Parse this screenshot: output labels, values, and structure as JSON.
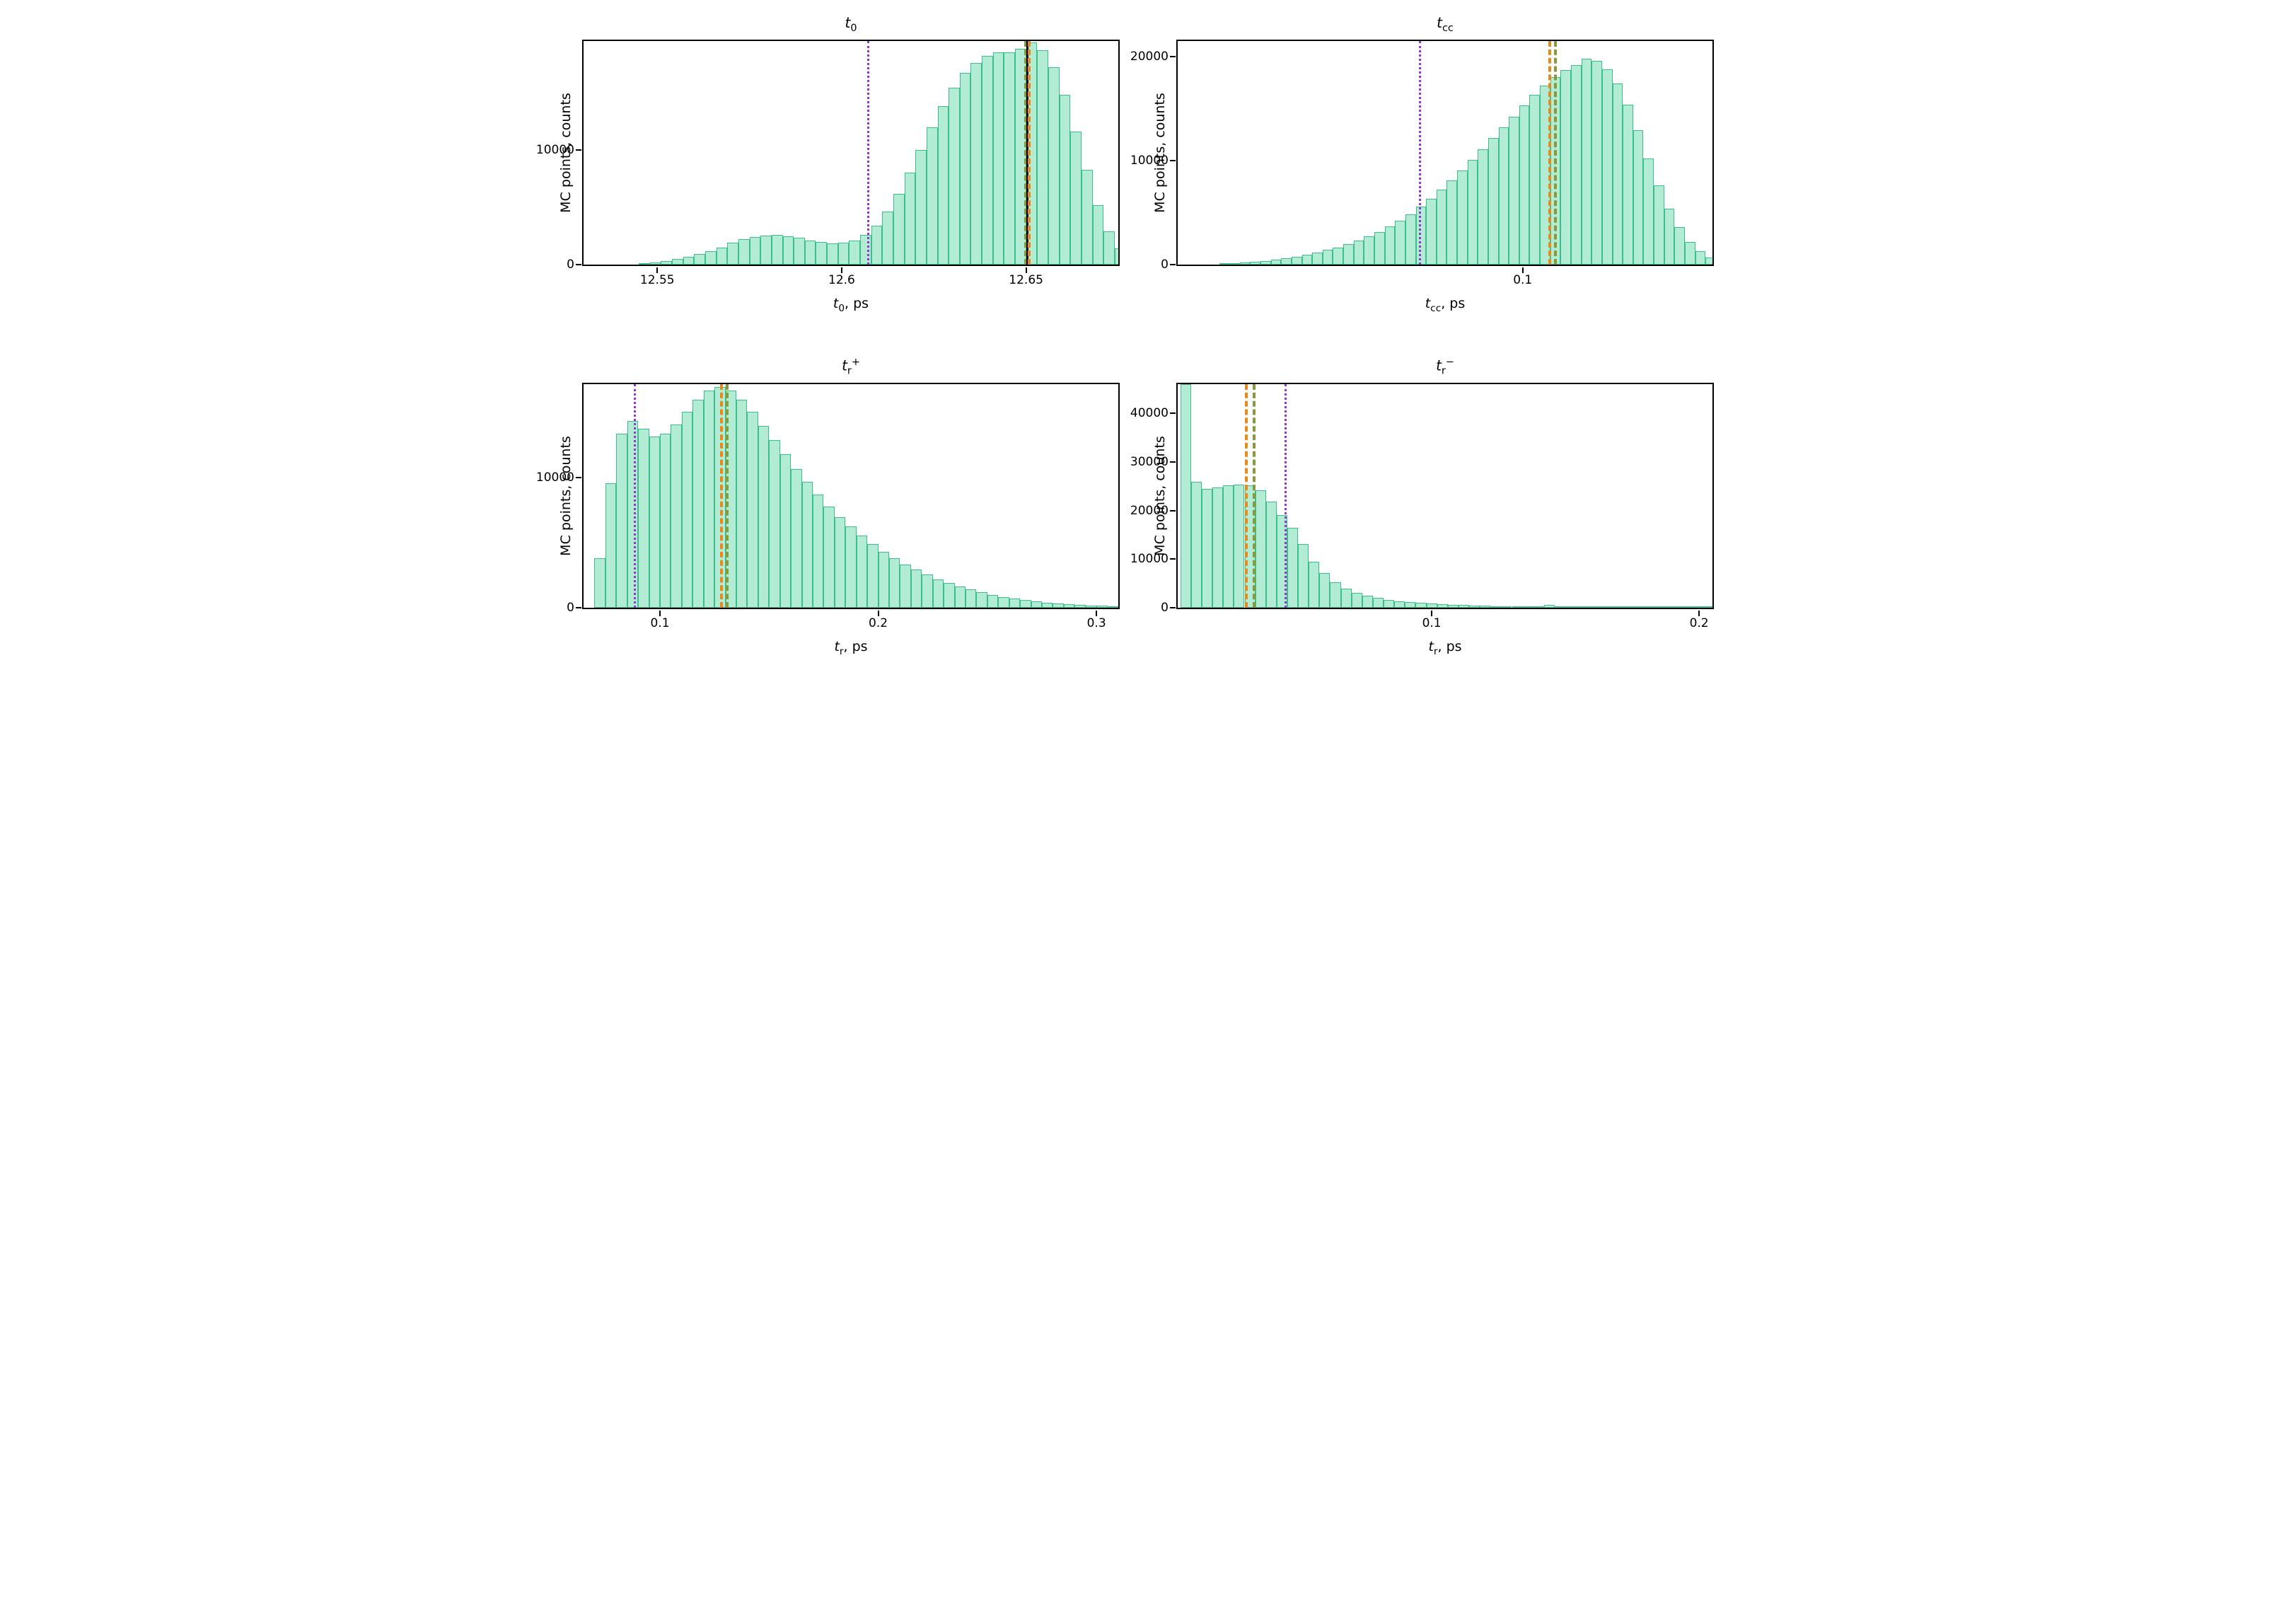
{
  "layout": {
    "rows": 2,
    "cols": 2,
    "background_color": "#ffffff",
    "font_family": "DejaVu Sans",
    "title_fontsize": 20,
    "axis_label_fontsize": 19,
    "tick_fontsize": 17
  },
  "colors": {
    "bar_fill": "#b3ecd4",
    "bar_edge": "#3bbf8a",
    "purple_dotted": "#9336d1",
    "orange_dashdot": "#e78a1e",
    "olive_dashdot": "#8a9a3a",
    "black_solid": "#000000",
    "axis": "#000000"
  },
  "panels": [
    {
      "id": "t0",
      "title_html": "<i>t</i><span class='sub'>0</span>",
      "type": "histogram",
      "ylabel": "MC points, counts",
      "xlabel_html": "<i>t</i><span class='sub'>0</span>, ps",
      "xlim": [
        12.53,
        12.675
      ],
      "ylim": [
        0,
        19500
      ],
      "xticks": [
        12.55,
        12.6,
        12.65
      ],
      "yticks": [
        0,
        10000
      ],
      "bin_width": 0.003,
      "bins": [
        {
          "x": 12.545,
          "c": 80
        },
        {
          "x": 12.548,
          "c": 180
        },
        {
          "x": 12.551,
          "c": 320
        },
        {
          "x": 12.554,
          "c": 480
        },
        {
          "x": 12.557,
          "c": 680
        },
        {
          "x": 12.56,
          "c": 900
        },
        {
          "x": 12.563,
          "c": 1150
        },
        {
          "x": 12.566,
          "c": 1500
        },
        {
          "x": 12.569,
          "c": 1900
        },
        {
          "x": 12.572,
          "c": 2200
        },
        {
          "x": 12.575,
          "c": 2400
        },
        {
          "x": 12.578,
          "c": 2550
        },
        {
          "x": 12.581,
          "c": 2580
        },
        {
          "x": 12.584,
          "c": 2500
        },
        {
          "x": 12.587,
          "c": 2350
        },
        {
          "x": 12.59,
          "c": 2100
        },
        {
          "x": 12.593,
          "c": 1950
        },
        {
          "x": 12.596,
          "c": 1850
        },
        {
          "x": 12.599,
          "c": 1900
        },
        {
          "x": 12.602,
          "c": 2100
        },
        {
          "x": 12.605,
          "c": 2600
        },
        {
          "x": 12.608,
          "c": 3400
        },
        {
          "x": 12.611,
          "c": 4600
        },
        {
          "x": 12.614,
          "c": 6200
        },
        {
          "x": 12.617,
          "c": 8000
        },
        {
          "x": 12.62,
          "c": 10000
        },
        {
          "x": 12.623,
          "c": 12000
        },
        {
          "x": 12.626,
          "c": 13800
        },
        {
          "x": 12.629,
          "c": 15400
        },
        {
          "x": 12.632,
          "c": 16700
        },
        {
          "x": 12.635,
          "c": 17600
        },
        {
          "x": 12.638,
          "c": 18200
        },
        {
          "x": 12.641,
          "c": 18500
        },
        {
          "x": 12.644,
          "c": 18500
        },
        {
          "x": 12.647,
          "c": 18800
        },
        {
          "x": 12.65,
          "c": 19400
        },
        {
          "x": 12.653,
          "c": 18700
        },
        {
          "x": 12.656,
          "c": 17200
        },
        {
          "x": 12.659,
          "c": 14800
        },
        {
          "x": 12.662,
          "c": 11600
        },
        {
          "x": 12.665,
          "c": 8300
        },
        {
          "x": 12.668,
          "c": 5200
        },
        {
          "x": 12.671,
          "c": 2900
        },
        {
          "x": 12.674,
          "c": 1400
        }
      ],
      "vlines": [
        {
          "x": 12.607,
          "style": "dotted",
          "color": "purple_dotted"
        },
        {
          "x": 12.6495,
          "style": "dashdot",
          "color": "olive_dashdot"
        },
        {
          "x": 12.65,
          "style": "solid",
          "color": "black_solid"
        },
        {
          "x": 12.6505,
          "style": "dashdot",
          "color": "orange_dashdot"
        }
      ]
    },
    {
      "id": "tcc",
      "title_html": "<i>t</i><span class='sub'>cc</span>",
      "type": "histogram",
      "ylabel": "MC points, counts",
      "xlabel_html": "<i>t</i><span class='sub'>cc</span>, ps",
      "xlim": [
        0.0,
        0.155
      ],
      "ylim": [
        0,
        21500
      ],
      "xticks": [
        0.1
      ],
      "yticks": [
        0,
        10000,
        20000
      ],
      "bin_width": 0.003,
      "bins": [
        {
          "x": 0.012,
          "c": 50
        },
        {
          "x": 0.015,
          "c": 110
        },
        {
          "x": 0.018,
          "c": 180
        },
        {
          "x": 0.021,
          "c": 260
        },
        {
          "x": 0.024,
          "c": 360
        },
        {
          "x": 0.027,
          "c": 480
        },
        {
          "x": 0.03,
          "c": 620
        },
        {
          "x": 0.033,
          "c": 780
        },
        {
          "x": 0.036,
          "c": 960
        },
        {
          "x": 0.039,
          "c": 1160
        },
        {
          "x": 0.042,
          "c": 1400
        },
        {
          "x": 0.045,
          "c": 1650
        },
        {
          "x": 0.048,
          "c": 1950
        },
        {
          "x": 0.051,
          "c": 2300
        },
        {
          "x": 0.054,
          "c": 2700
        },
        {
          "x": 0.057,
          "c": 3150
        },
        {
          "x": 0.06,
          "c": 3650
        },
        {
          "x": 0.063,
          "c": 4200
        },
        {
          "x": 0.066,
          "c": 4850
        },
        {
          "x": 0.069,
          "c": 5550
        },
        {
          "x": 0.072,
          "c": 6350
        },
        {
          "x": 0.075,
          "c": 7200
        },
        {
          "x": 0.078,
          "c": 8100
        },
        {
          "x": 0.081,
          "c": 9050
        },
        {
          "x": 0.084,
          "c": 10050
        },
        {
          "x": 0.087,
          "c": 11100
        },
        {
          "x": 0.09,
          "c": 12150
        },
        {
          "x": 0.093,
          "c": 13200
        },
        {
          "x": 0.096,
          "c": 14250
        },
        {
          "x": 0.099,
          "c": 15300
        },
        {
          "x": 0.102,
          "c": 16300
        },
        {
          "x": 0.105,
          "c": 17200
        },
        {
          "x": 0.108,
          "c": 18000
        },
        {
          "x": 0.111,
          "c": 18700
        },
        {
          "x": 0.114,
          "c": 19200
        },
        {
          "x": 0.117,
          "c": 19800
        },
        {
          "x": 0.12,
          "c": 19600
        },
        {
          "x": 0.123,
          "c": 18800
        },
        {
          "x": 0.126,
          "c": 17400
        },
        {
          "x": 0.129,
          "c": 15400
        },
        {
          "x": 0.132,
          "c": 12900
        },
        {
          "x": 0.135,
          "c": 10200
        },
        {
          "x": 0.138,
          "c": 7600
        },
        {
          "x": 0.141,
          "c": 5400
        },
        {
          "x": 0.144,
          "c": 3600
        },
        {
          "x": 0.147,
          "c": 2200
        },
        {
          "x": 0.15,
          "c": 1300
        },
        {
          "x": 0.153,
          "c": 700
        }
      ],
      "vlines": [
        {
          "x": 0.07,
          "style": "dotted",
          "color": "purple_dotted"
        },
        {
          "x": 0.1075,
          "style": "dashdot",
          "color": "orange_dashdot"
        },
        {
          "x": 0.109,
          "style": "dashdot",
          "color": "olive_dashdot"
        }
      ]
    },
    {
      "id": "tr_plus",
      "title_html": "<i>t</i><span class='sub'>r</span><span class='sup'>+</span>",
      "type": "histogram",
      "ylabel": "MC points, counts",
      "xlabel_html": "<i>t</i><span class='sub'>r</span>, ps",
      "xlim": [
        0.065,
        0.31
      ],
      "ylim": [
        0,
        17200
      ],
      "xticks": [
        0.1,
        0.2,
        0.3
      ],
      "yticks": [
        0,
        10000
      ],
      "bin_width": 0.005,
      "bins": [
        {
          "x": 0.07,
          "c": 3800
        },
        {
          "x": 0.075,
          "c": 9600
        },
        {
          "x": 0.08,
          "c": 13400
        },
        {
          "x": 0.085,
          "c": 14400
        },
        {
          "x": 0.09,
          "c": 13800
        },
        {
          "x": 0.095,
          "c": 13200
        },
        {
          "x": 0.1,
          "c": 13400
        },
        {
          "x": 0.105,
          "c": 14100
        },
        {
          "x": 0.11,
          "c": 15100
        },
        {
          "x": 0.115,
          "c": 16000
        },
        {
          "x": 0.12,
          "c": 16700
        },
        {
          "x": 0.125,
          "c": 17000
        },
        {
          "x": 0.13,
          "c": 16700
        },
        {
          "x": 0.135,
          "c": 16000
        },
        {
          "x": 0.14,
          "c": 15100
        },
        {
          "x": 0.145,
          "c": 14000
        },
        {
          "x": 0.15,
          "c": 12900
        },
        {
          "x": 0.155,
          "c": 11800
        },
        {
          "x": 0.16,
          "c": 10700
        },
        {
          "x": 0.165,
          "c": 9700
        },
        {
          "x": 0.17,
          "c": 8700
        },
        {
          "x": 0.175,
          "c": 7800
        },
        {
          "x": 0.18,
          "c": 7000
        },
        {
          "x": 0.185,
          "c": 6250
        },
        {
          "x": 0.19,
          "c": 5550
        },
        {
          "x": 0.195,
          "c": 4900
        },
        {
          "x": 0.2,
          "c": 4300
        },
        {
          "x": 0.205,
          "c": 3800
        },
        {
          "x": 0.21,
          "c": 3350
        },
        {
          "x": 0.215,
          "c": 2950
        },
        {
          "x": 0.22,
          "c": 2550
        },
        {
          "x": 0.225,
          "c": 2200
        },
        {
          "x": 0.23,
          "c": 1900
        },
        {
          "x": 0.235,
          "c": 1650
        },
        {
          "x": 0.24,
          "c": 1400
        },
        {
          "x": 0.245,
          "c": 1200
        },
        {
          "x": 0.25,
          "c": 1000
        },
        {
          "x": 0.255,
          "c": 830
        },
        {
          "x": 0.26,
          "c": 700
        },
        {
          "x": 0.265,
          "c": 580
        },
        {
          "x": 0.27,
          "c": 480
        },
        {
          "x": 0.275,
          "c": 400
        },
        {
          "x": 0.28,
          "c": 330
        },
        {
          "x": 0.285,
          "c": 270
        },
        {
          "x": 0.29,
          "c": 220
        },
        {
          "x": 0.295,
          "c": 180
        },
        {
          "x": 0.3,
          "c": 150
        },
        {
          "x": 0.305,
          "c": 120
        }
      ],
      "vlines": [
        {
          "x": 0.088,
          "style": "dotted",
          "color": "purple_dotted"
        },
        {
          "x": 0.1275,
          "style": "dashdot",
          "color": "orange_dashdot"
        },
        {
          "x": 0.13,
          "style": "dashdot",
          "color": "olive_dashdot"
        }
      ]
    },
    {
      "id": "tr_minus",
      "title_html": "<i>t</i><span class='sub'>r</span><span class='sup'>&minus;</span>",
      "type": "histogram",
      "ylabel": "MC points, counts",
      "xlabel_html": "<i>t</i><span class='sub'>r</span>, ps",
      "xlim": [
        0.005,
        0.205
      ],
      "ylim": [
        0,
        46000
      ],
      "xticks": [
        0.1,
        0.2
      ],
      "yticks": [
        0,
        10000,
        20000,
        30000,
        40000
      ],
      "bin_width": 0.004,
      "bins": [
        {
          "x": 0.006,
          "c": 46000
        },
        {
          "x": 0.01,
          "c": 26000
        },
        {
          "x": 0.014,
          "c": 24500
        },
        {
          "x": 0.018,
          "c": 24800
        },
        {
          "x": 0.022,
          "c": 25200
        },
        {
          "x": 0.026,
          "c": 25400
        },
        {
          "x": 0.03,
          "c": 25200
        },
        {
          "x": 0.034,
          "c": 24200
        },
        {
          "x": 0.038,
          "c": 21800
        },
        {
          "x": 0.042,
          "c": 19100
        },
        {
          "x": 0.046,
          "c": 16400
        },
        {
          "x": 0.05,
          "c": 13100
        },
        {
          "x": 0.054,
          "c": 9500
        },
        {
          "x": 0.058,
          "c": 7100
        },
        {
          "x": 0.062,
          "c": 5300
        },
        {
          "x": 0.066,
          "c": 4000
        },
        {
          "x": 0.07,
          "c": 3100
        },
        {
          "x": 0.074,
          "c": 2500
        },
        {
          "x": 0.078,
          "c": 2000
        },
        {
          "x": 0.082,
          "c": 1600
        },
        {
          "x": 0.086,
          "c": 1350
        },
        {
          "x": 0.09,
          "c": 1150
        },
        {
          "x": 0.094,
          "c": 980
        },
        {
          "x": 0.098,
          "c": 840
        },
        {
          "x": 0.102,
          "c": 720
        },
        {
          "x": 0.106,
          "c": 620
        },
        {
          "x": 0.11,
          "c": 540
        },
        {
          "x": 0.114,
          "c": 470
        },
        {
          "x": 0.118,
          "c": 410
        },
        {
          "x": 0.122,
          "c": 360
        },
        {
          "x": 0.126,
          "c": 320
        },
        {
          "x": 0.13,
          "c": 280
        },
        {
          "x": 0.134,
          "c": 250
        },
        {
          "x": 0.138,
          "c": 220
        },
        {
          "x": 0.142,
          "c": 550
        },
        {
          "x": 0.146,
          "c": 180
        },
        {
          "x": 0.15,
          "c": 160
        },
        {
          "x": 0.154,
          "c": 140
        },
        {
          "x": 0.158,
          "c": 125
        },
        {
          "x": 0.162,
          "c": 110
        },
        {
          "x": 0.166,
          "c": 100
        },
        {
          "x": 0.17,
          "c": 90
        },
        {
          "x": 0.174,
          "c": 80
        },
        {
          "x": 0.178,
          "c": 70
        },
        {
          "x": 0.182,
          "c": 60
        },
        {
          "x": 0.186,
          "c": 55
        },
        {
          "x": 0.19,
          "c": 50
        },
        {
          "x": 0.194,
          "c": 45
        },
        {
          "x": 0.198,
          "c": 40
        },
        {
          "x": 0.202,
          "c": 35
        }
      ],
      "vlines": [
        {
          "x": 0.03,
          "style": "dashdot",
          "color": "orange_dashdot"
        },
        {
          "x": 0.033,
          "style": "dashdot",
          "color": "olive_dashdot"
        },
        {
          "x": 0.045,
          "style": "dotted",
          "color": "purple_dotted"
        }
      ]
    }
  ]
}
